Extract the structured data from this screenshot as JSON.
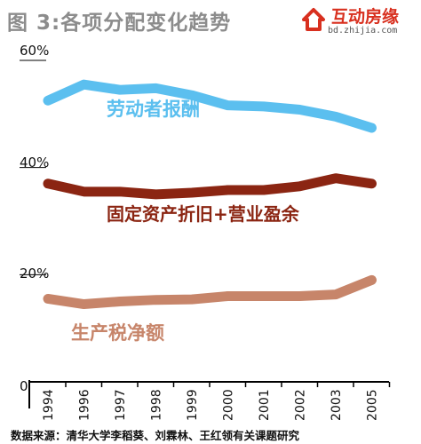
{
  "title": "图 3:各项分配变化趋势",
  "logo": {
    "name": "互动房缘",
    "url": "bd.zhijia.com"
  },
  "source": "数据来源：清华大学李稻葵、刘霖林、王红领有关课题研究",
  "colors": {
    "labor": "#5bbfef",
    "capital": "#8b2512",
    "tax": "#c7856a",
    "axis": "#000000",
    "grid": "#000000"
  },
  "chart_data": {
    "type": "line",
    "categories": [
      "1994",
      "1996",
      "1997",
      "1998",
      "1999",
      "2000",
      "2001",
      "2002",
      "2003",
      "2005"
    ],
    "y_ticks": [
      "60%",
      "40%",
      "20%",
      "0"
    ],
    "ylim": [
      0,
      60
    ],
    "series": [
      {
        "name": "劳动者报酬",
        "key": "labor",
        "values": [
          52.5,
          55.5,
          54.5,
          54.8,
          53.5,
          51.6,
          51.4,
          50.8,
          49.5,
          47.4
        ]
      },
      {
        "name": "固定资产折旧+营业盈余",
        "key": "capital",
        "values": [
          37.0,
          35.5,
          35.5,
          35.0,
          35.3,
          35.8,
          35.8,
          36.5,
          38.0,
          37.0
        ]
      },
      {
        "name": "生产税净额",
        "key": "tax",
        "values": [
          15.5,
          14.5,
          15.0,
          15.3,
          15.4,
          16.0,
          16.0,
          16.0,
          16.3,
          19.0
        ]
      }
    ],
    "grid": true
  }
}
